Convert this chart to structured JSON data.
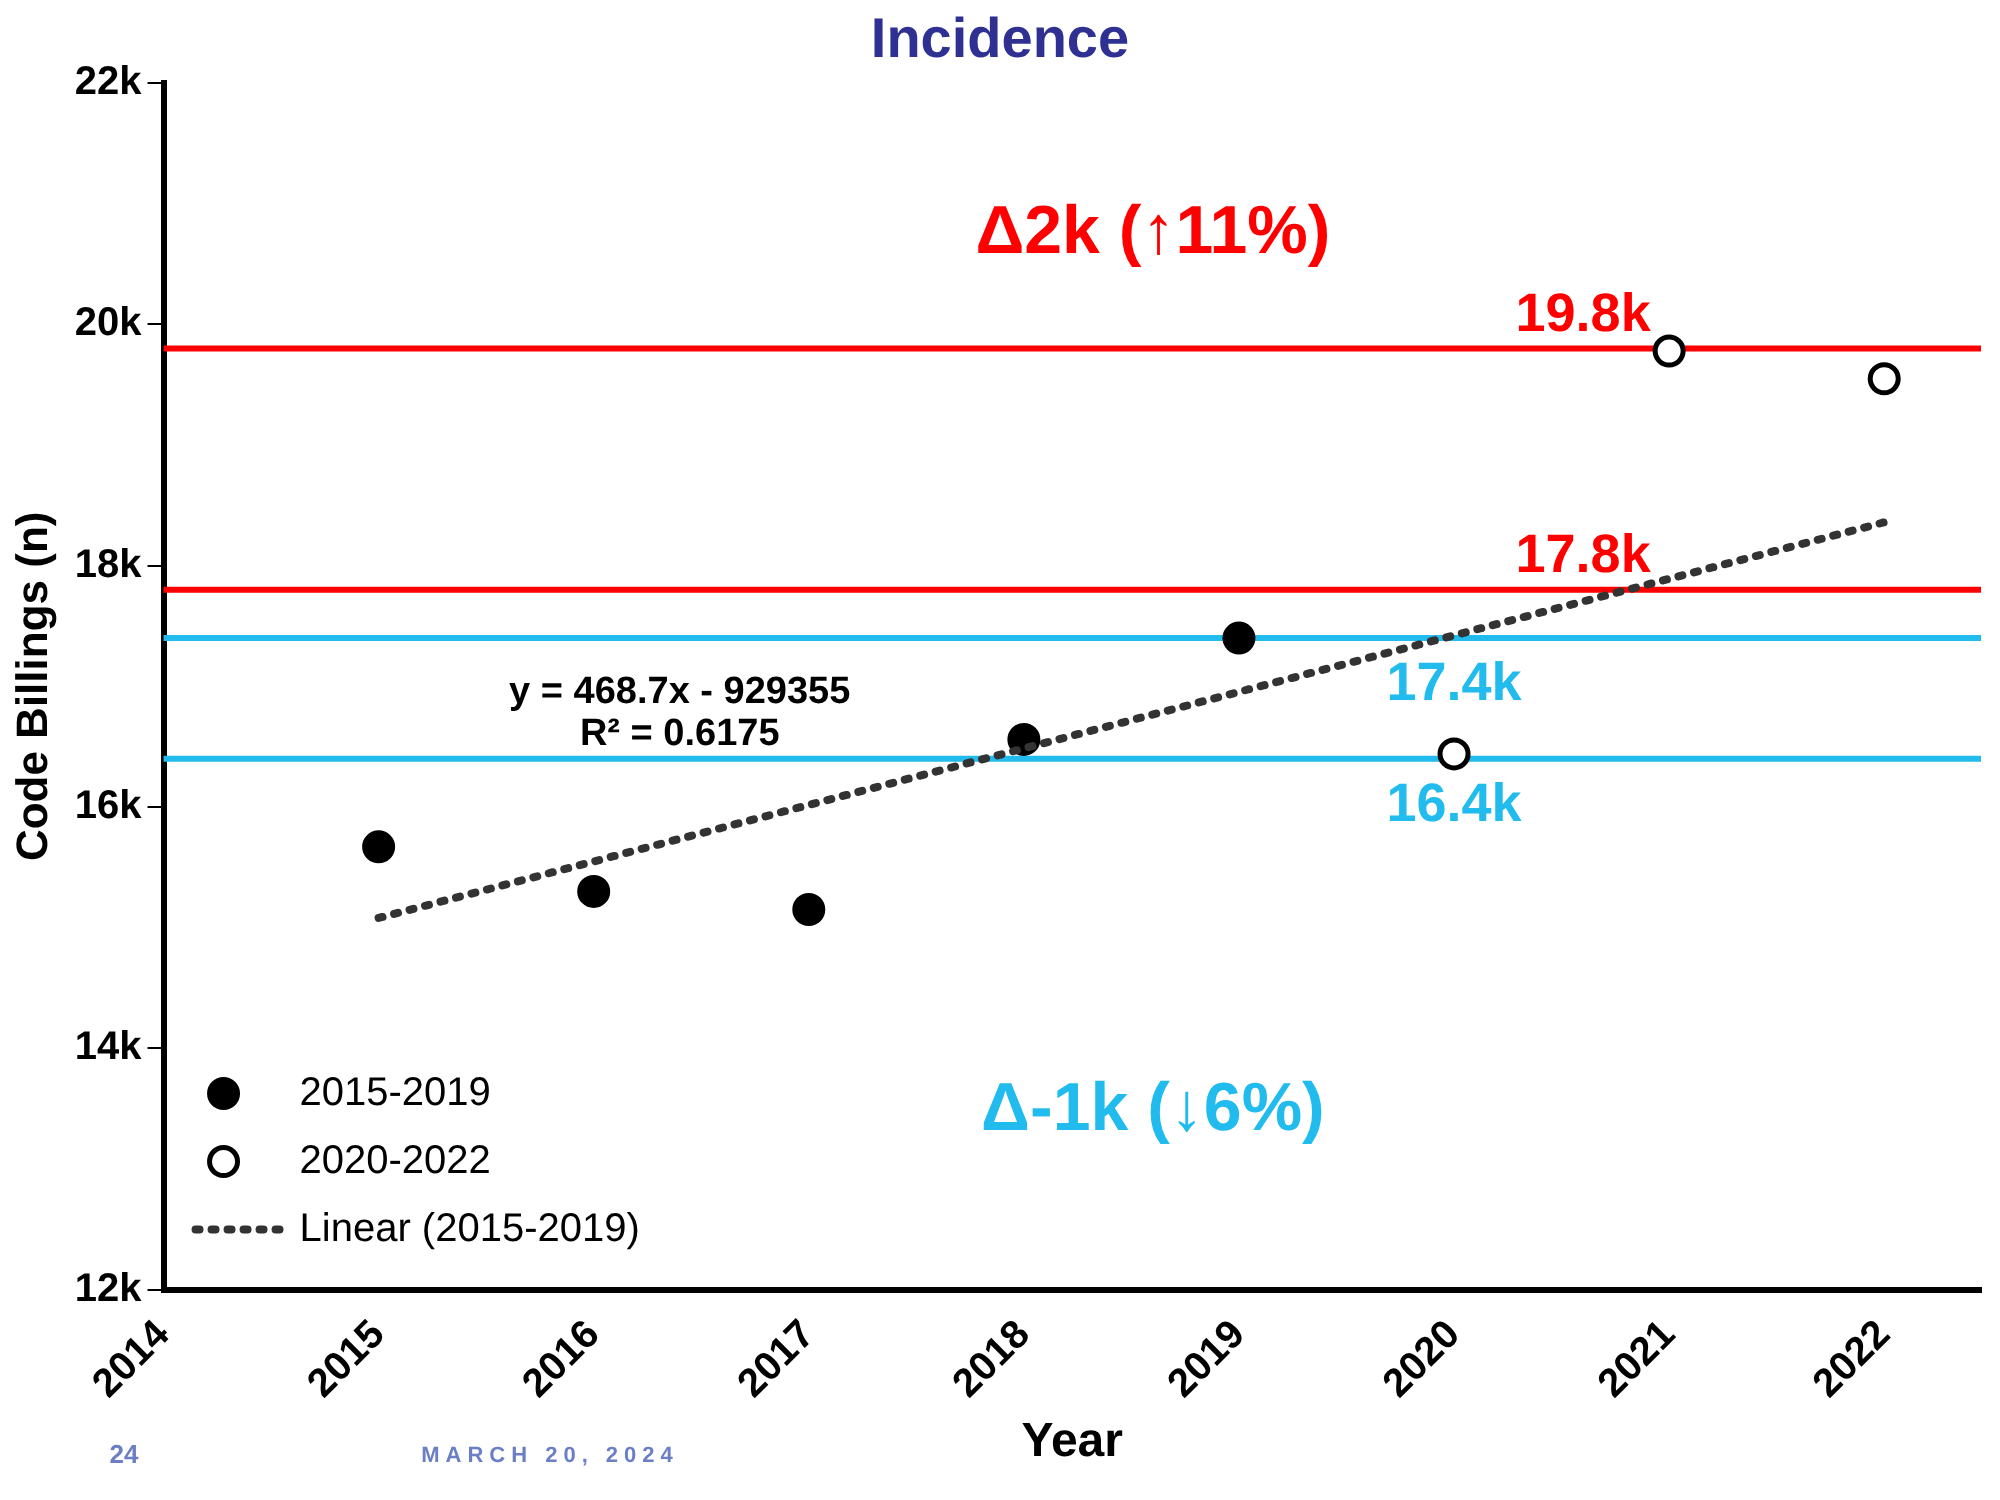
{
  "chart_data": {
    "type": "scatter",
    "title": "Incidence",
    "xlabel": "Year",
    "ylabel": "Code Billings (n)",
    "xlim": [
      2014,
      2022.45
    ],
    "xticks": [
      2014,
      2015,
      2016,
      2017,
      2018,
      2019,
      2020,
      2021,
      2022
    ],
    "ylim": [
      12000,
      22000
    ],
    "yticks": [
      {
        "value": 12000,
        "label": "12k"
      },
      {
        "value": 14000,
        "label": "14k"
      },
      {
        "value": 16000,
        "label": "16k"
      },
      {
        "value": 18000,
        "label": "18k"
      },
      {
        "value": 20000,
        "label": "20k"
      },
      {
        "value": 22000,
        "label": "22k"
      }
    ],
    "grid": false,
    "legend": "bottom left",
    "series": [
      {
        "name": "2015-2019",
        "type": "scatter",
        "color": "#000000",
        "marker": "circle",
        "x": [
          2015,
          2016,
          2017,
          2018,
          2019
        ],
        "values": [
          15670,
          15300,
          15150,
          16560,
          17400
        ]
      },
      {
        "name": "2020-2022",
        "type": "scatter",
        "color": "#000000",
        "marker": "circle",
        "x": [
          2020,
          2021,
          2022
        ],
        "values": [
          16440,
          19780,
          19550
        ]
      },
      {
        "name": "Linear (2015-2019)",
        "type": "line",
        "color": "#333333",
        "marker": "none",
        "line_style": "dotted",
        "x": [
          2015,
          2022
        ],
        "values": [
          15080,
          18360
        ]
      }
    ],
    "ref_lines": [
      {
        "axis": "y",
        "value": 19800,
        "label": "19.8k",
        "color": "#ff0000"
      },
      {
        "axis": "y",
        "value": 17800,
        "label": "17.8k",
        "color": "#ff0000"
      },
      {
        "axis": "y",
        "value": 17400,
        "label": "17.4k",
        "color": "#22bbee"
      },
      {
        "axis": "y",
        "value": 16400,
        "label": "16.4k",
        "color": "#22bbee"
      }
    ],
    "annotations": [
      "Δ2k (↑11%)",
      "Δ-1k (↓6%)",
      "y = 468.7x - 929355",
      "R² = 0.6175",
      "24",
      "MARCH 20, 2024"
    ]
  }
}
